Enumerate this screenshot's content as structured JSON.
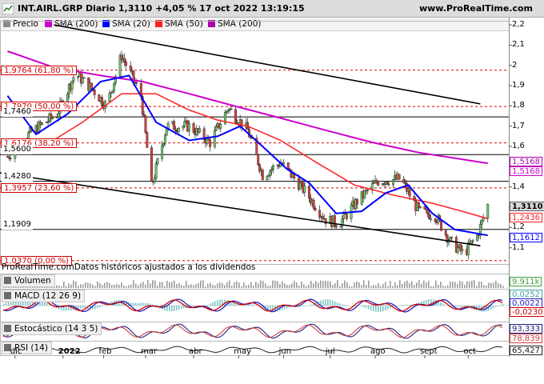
{
  "header": {
    "title": "INT.AIRL.GRP Diario 1,3110 +4,05 % 17 oct 2022 13:19:15",
    "site": "www.ProRealTime.com"
  },
  "legend": [
    {
      "label": "Precio",
      "color": "#8a8a8a"
    },
    {
      "label": "SMA (200)",
      "color": "#cc00cc"
    },
    {
      "label": "SMA (20)",
      "color": "#0000ff"
    },
    {
      "label": "SMA (50)",
      "color": "#ff2020"
    },
    {
      "label": "SMA (200)",
      "color": "#aa00aa"
    }
  ],
  "note": "ProRealTime.comDatos históricos ajustados a los dividendos",
  "fib_levels": [
    {
      "label": "1,9764 (61,80 %)",
      "value": 1.9764
    },
    {
      "label": "1,7970 (50,00 %)",
      "value": 1.797
    },
    {
      "label": "1,6176 (38,20 %)",
      "value": 1.6176
    },
    {
      "label": "1,3957 (23,60 %)",
      "value": 1.3957
    },
    {
      "label": "1,0370 (0,00 %)",
      "value": 1.037
    }
  ],
  "black_levels": [
    {
      "label": "1,7460",
      "value": 1.746
    },
    {
      "label": "1,5600",
      "value": 1.56
    },
    {
      "label": "1,4280",
      "value": 1.428
    },
    {
      "label": "1,1909",
      "value": 1.1909
    }
  ],
  "right_tags": [
    {
      "text": "1,5168",
      "color": "#aa00aa",
      "value": 1.5168
    },
    {
      "text": "1,5168",
      "color": "#cc00cc",
      "value": 1.5168
    },
    {
      "text": "1,3110",
      "color": "#606060",
      "value": 1.311
    },
    {
      "text": "1,2436",
      "color": "#ff2020",
      "value": 1.2436
    },
    {
      "text": "1,1612",
      "color": "#0000ff",
      "value": 1.1612
    }
  ],
  "x_labels": [
    "dic",
    "2022",
    "feb",
    "mar",
    "abr",
    "may",
    "jun",
    "jul",
    "ago",
    "sept",
    "oct"
  ],
  "panels": [
    {
      "title": "Volumen",
      "tags": [
        {
          "text": "9.911k",
          "color": "#40a040"
        }
      ]
    },
    {
      "title": "MACD (12 26 9)",
      "tags": [
        {
          "text": "0,0252",
          "color": "#40a0a0"
        },
        {
          "text": "0,0022",
          "color": "#2020c0"
        },
        {
          "text": "-0,0230",
          "color": "#d00000"
        }
      ]
    },
    {
      "title": "Estocástico (14 3 5)",
      "tags": [
        {
          "text": "93,333",
          "color": "#202080"
        },
        {
          "text": "78,839",
          "color": "#d04040"
        }
      ]
    },
    {
      "title": "RSI (14)",
      "tags": [
        {
          "text": "65,427",
          "color": "#202020"
        }
      ]
    }
  ],
  "chart_data": {
    "type": "candlestick",
    "y_ticks": [
      "2,2",
      "2,1",
      "2",
      "1,9",
      "1,8",
      "1,7",
      "1,6",
      "1,5",
      "1,4",
      "1,3",
      "1,2",
      "1,1"
    ],
    "y_values": [
      2.2,
      2.1,
      2.0,
      1.9,
      1.8,
      1.7,
      1.6,
      1.5,
      1.4,
      1.3,
      1.2,
      1.1
    ],
    "ylim": [
      1.02,
      2.22
    ],
    "close_path": [
      {
        "x": "2021-12-01",
        "y": 1.55
      },
      {
        "x": "2021-12-15",
        "y": 1.66
      },
      {
        "x": "2022-01-03",
        "y": 1.76
      },
      {
        "x": "2022-01-15",
        "y": 1.96
      },
      {
        "x": "2022-01-27",
        "y": 1.88
      },
      {
        "x": "2022-02-05",
        "y": 1.8
      },
      {
        "x": "2022-02-15",
        "y": 2.05
      },
      {
        "x": "2022-02-28",
        "y": 1.85
      },
      {
        "x": "2022-03-07",
        "y": 1.4
      },
      {
        "x": "2022-03-17",
        "y": 1.7
      },
      {
        "x": "2022-04-01",
        "y": 1.7
      },
      {
        "x": "2022-04-15",
        "y": 1.62
      },
      {
        "x": "2022-04-27",
        "y": 1.79
      },
      {
        "x": "2022-05-10",
        "y": 1.68
      },
      {
        "x": "2022-05-20",
        "y": 1.46
      },
      {
        "x": "2022-06-01",
        "y": 1.52
      },
      {
        "x": "2022-06-15",
        "y": 1.4
      },
      {
        "x": "2022-07-01",
        "y": 1.24
      },
      {
        "x": "2022-07-10",
        "y": 1.22
      },
      {
        "x": "2022-07-22",
        "y": 1.33
      },
      {
        "x": "2022-08-05",
        "y": 1.43
      },
      {
        "x": "2022-08-20",
        "y": 1.44
      },
      {
        "x": "2022-09-01",
        "y": 1.28
      },
      {
        "x": "2022-09-12",
        "y": 1.26
      },
      {
        "x": "2022-09-22",
        "y": 1.13
      },
      {
        "x": "2022-10-01",
        "y": 1.07
      },
      {
        "x": "2022-10-10",
        "y": 1.16
      },
      {
        "x": "2022-10-17",
        "y": 1.311
      }
    ],
    "sma20_path": [
      {
        "x": "2021-12-01",
        "y": 1.85
      },
      {
        "x": "2021-12-20",
        "y": 1.66
      },
      {
        "x": "2022-01-10",
        "y": 1.76
      },
      {
        "x": "2022-02-01",
        "y": 1.92
      },
      {
        "x": "2022-02-20",
        "y": 1.95
      },
      {
        "x": "2022-03-10",
        "y": 1.72
      },
      {
        "x": "2022-04-01",
        "y": 1.63
      },
      {
        "x": "2022-04-20",
        "y": 1.65
      },
      {
        "x": "2022-05-05",
        "y": 1.7
      },
      {
        "x": "2022-05-20",
        "y": 1.6
      },
      {
        "x": "2022-06-05",
        "y": 1.49
      },
      {
        "x": "2022-06-20",
        "y": 1.42
      },
      {
        "x": "2022-07-08",
        "y": 1.27
      },
      {
        "x": "2022-07-25",
        "y": 1.28
      },
      {
        "x": "2022-08-10",
        "y": 1.37
      },
      {
        "x": "2022-08-25",
        "y": 1.41
      },
      {
        "x": "2022-09-10",
        "y": 1.27
      },
      {
        "x": "2022-09-25",
        "y": 1.19
      },
      {
        "x": "2022-10-17",
        "y": 1.1612
      }
    ],
    "sma50_path": [
      {
        "x": "2021-12-01",
        "y": 1.59
      },
      {
        "x": "2021-12-25",
        "y": 1.6
      },
      {
        "x": "2022-01-20",
        "y": 1.72
      },
      {
        "x": "2022-02-15",
        "y": 1.86
      },
      {
        "x": "2022-03-10",
        "y": 1.86
      },
      {
        "x": "2022-04-01",
        "y": 1.78
      },
      {
        "x": "2022-04-20",
        "y": 1.73
      },
      {
        "x": "2022-05-10",
        "y": 1.7
      },
      {
        "x": "2022-06-01",
        "y": 1.63
      },
      {
        "x": "2022-06-25",
        "y": 1.52
      },
      {
        "x": "2022-07-20",
        "y": 1.41
      },
      {
        "x": "2022-08-15",
        "y": 1.36
      },
      {
        "x": "2022-09-10",
        "y": 1.32
      },
      {
        "x": "2022-09-30",
        "y": 1.28
      },
      {
        "x": "2022-10-17",
        "y": 1.2436
      }
    ],
    "sma200_path": [
      {
        "x": "2021-12-01",
        "y": 2.07
      },
      {
        "x": "2022-01-01",
        "y": 1.99
      },
      {
        "x": "2022-02-01",
        "y": 1.95
      },
      {
        "x": "2022-03-01",
        "y": 1.92
      },
      {
        "x": "2022-04-01",
        "y": 1.86
      },
      {
        "x": "2022-05-01",
        "y": 1.8
      },
      {
        "x": "2022-06-01",
        "y": 1.74
      },
      {
        "x": "2022-07-01",
        "y": 1.68
      },
      {
        "x": "2022-08-01",
        "y": 1.62
      },
      {
        "x": "2022-09-01",
        "y": 1.57
      },
      {
        "x": "2022-10-17",
        "y": 1.5168
      }
    ],
    "trendlines": [
      {
        "x1": "2022-01-01",
        "y1": 2.2,
        "x2": "2022-10-12",
        "y2": 1.81
      },
      {
        "x1": "2021-11-26",
        "y1": 1.47,
        "x2": "2022-10-12",
        "y2": 1.11
      }
    ]
  }
}
